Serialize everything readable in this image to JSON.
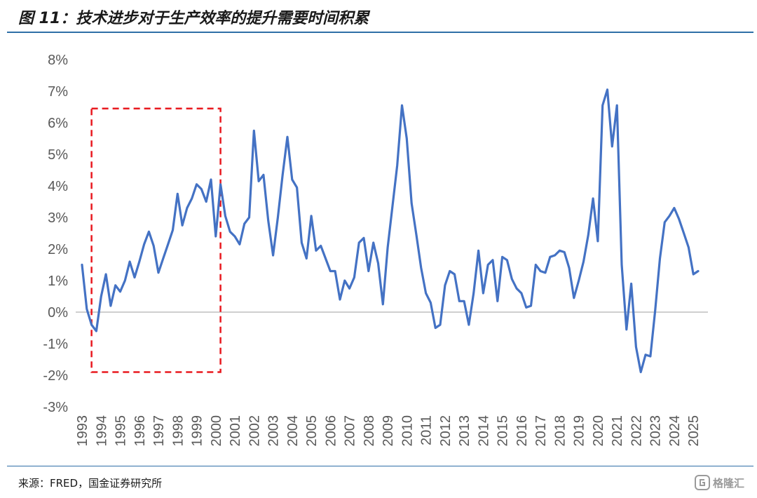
{
  "figure": {
    "title": "图 11：技术进步对于生产效率的提升需要时间积累",
    "source": "来源：FRED，国金证券研究所",
    "watermark": "格隆汇"
  },
  "colors": {
    "line": "#4472c4",
    "highlight_box": "#e8191f",
    "rule": "#2f6fa7",
    "zero_axis": "#bfbfbf",
    "tick_text": "#595959"
  },
  "chart_data": {
    "type": "line",
    "title": "",
    "xlabel": "",
    "ylabel": "",
    "ylim": [
      -3,
      8
    ],
    "y_ticks": [
      "-3%",
      "-2%",
      "-1%",
      "0%",
      "1%",
      "2%",
      "3%",
      "4%",
      "5%",
      "6%",
      "7%",
      "8%"
    ],
    "x_ticks": [
      "1993",
      "1994",
      "1995",
      "1996",
      "1997",
      "1998",
      "1999",
      "2000",
      "2001",
      "2002",
      "2003",
      "2004",
      "2005",
      "2006",
      "2007",
      "2008",
      "2009",
      "2010",
      "2011",
      "2012",
      "2013",
      "2014",
      "2015",
      "2016",
      "2017",
      "2018",
      "2019",
      "2020",
      "2021",
      "2022",
      "2023",
      "2024",
      "2025"
    ],
    "x_range": [
      1993,
      2025.25
    ],
    "grid": false,
    "legend": "none",
    "highlight_region": {
      "x_from": 1993.5,
      "x_to": 2000.25,
      "y_from": -1.9,
      "y_to": 6.45
    },
    "series": [
      {
        "x": [
          1993.0,
          1993.25,
          1993.5,
          1993.75,
          1994.0,
          1994.25,
          1994.5,
          1994.75,
          1995.0,
          1995.25,
          1995.5,
          1995.75,
          1996.0,
          1996.25,
          1996.5,
          1996.75,
          1997.0,
          1997.25,
          1997.5,
          1997.75,
          1998.0,
          1998.25,
          1998.5,
          1998.75,
          1999.0,
          1999.25,
          1999.5,
          1999.75,
          2000.0,
          2000.25,
          2000.5,
          2000.75,
          2001.0,
          2001.25,
          2001.5,
          2001.75,
          2002.0,
          2002.25,
          2002.5,
          2002.75,
          2003.0,
          2003.25,
          2003.5,
          2003.75,
          2004.0,
          2004.25,
          2004.5,
          2004.75,
          2005.0,
          2005.25,
          2005.5,
          2005.75,
          2006.0,
          2006.25,
          2006.5,
          2006.75,
          2007.0,
          2007.25,
          2007.5,
          2007.75,
          2008.0,
          2008.25,
          2008.5,
          2008.75,
          2009.0,
          2009.25,
          2009.5,
          2009.75,
          2010.0,
          2010.25,
          2010.5,
          2010.75,
          2011.0,
          2011.25,
          2011.5,
          2011.75,
          2012.0,
          2012.25,
          2012.5,
          2012.75,
          2013.0,
          2013.25,
          2013.5,
          2013.75,
          2014.0,
          2014.25,
          2014.5,
          2014.75,
          2015.0,
          2015.25,
          2015.5,
          2015.75,
          2016.0,
          2016.25,
          2016.5,
          2016.75,
          2017.0,
          2017.25,
          2017.5,
          2017.75,
          2018.0,
          2018.25,
          2018.5,
          2018.75,
          2019.0,
          2019.25,
          2019.5,
          2019.75,
          2020.0,
          2020.25,
          2020.5,
          2020.75,
          2021.0,
          2021.25,
          2021.5,
          2021.75,
          2022.0,
          2022.25,
          2022.5,
          2022.75,
          2023.0,
          2023.25,
          2023.5,
          2023.75,
          2024.0,
          2024.25,
          2024.5,
          2024.75,
          2025.0,
          2025.25
        ],
        "values": [
          1.5,
          0.1,
          -0.4,
          -0.6,
          0.5,
          1.2,
          0.2,
          0.85,
          0.65,
          1.0,
          1.6,
          1.1,
          1.6,
          2.15,
          2.55,
          2.1,
          1.25,
          1.7,
          2.15,
          2.6,
          3.75,
          2.75,
          3.3,
          3.6,
          4.05,
          3.9,
          3.5,
          4.2,
          2.4,
          4.05,
          3.05,
          2.55,
          2.4,
          2.15,
          2.8,
          3.0,
          5.75,
          4.15,
          4.35,
          2.9,
          1.8,
          3.0,
          4.35,
          5.55,
          4.2,
          3.95,
          2.2,
          1.7,
          3.05,
          1.95,
          2.1,
          1.7,
          1.3,
          1.3,
          0.4,
          1.0,
          0.75,
          1.1,
          2.2,
          2.35,
          1.3,
          2.2,
          1.55,
          0.25,
          2.05,
          3.35,
          4.65,
          6.55,
          5.5,
          3.45,
          2.45,
          1.4,
          0.6,
          0.3,
          -0.5,
          -0.4,
          0.85,
          1.3,
          1.2,
          0.35,
          0.35,
          -0.4,
          0.6,
          1.95,
          0.6,
          1.5,
          1.65,
          0.35,
          1.75,
          1.65,
          1.05,
          0.75,
          0.6,
          0.15,
          0.2,
          1.5,
          1.3,
          1.25,
          1.75,
          1.8,
          1.95,
          1.9,
          1.4,
          0.45,
          1.0,
          1.6,
          2.45,
          3.6,
          2.25,
          6.55,
          7.05,
          5.25,
          6.55,
          1.5,
          -0.55,
          0.9,
          -1.1,
          -1.9,
          -1.35,
          -1.4,
          0.05,
          1.7,
          2.85,
          3.05,
          3.3,
          2.95,
          2.5,
          2.05,
          1.2,
          1.3
        ]
      }
    ]
  }
}
